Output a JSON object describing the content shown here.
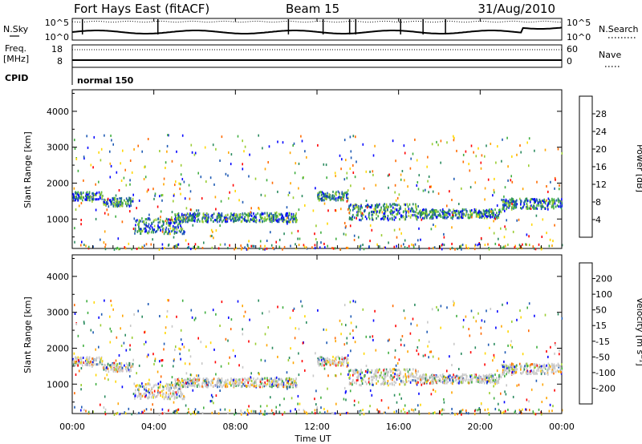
{
  "header": {
    "station": "Fort Hays East (fitACF)",
    "beam": "Beam 15",
    "date": "31/Aug/2010"
  },
  "nsky_panel": {
    "left_label": "N.Sky",
    "right_label": "N.Search",
    "left_ticks": [
      "10^5",
      "10^0"
    ],
    "right_ticks": [
      "10^5",
      "10^0"
    ]
  },
  "freq_panel": {
    "left_label_top": "Freq.",
    "left_label_unit": "[MHz]",
    "right_label": "Nave",
    "left_ticks": [
      "18",
      "8"
    ],
    "right_ticks": [
      "60",
      "0"
    ]
  },
  "cpid": {
    "label": "CPID",
    "mode": "normal 150"
  },
  "power_colorbar": {
    "title": "Power [dB]",
    "ticks": [
      "28",
      "24",
      "20",
      "16",
      "12",
      "8",
      "4"
    ],
    "colors": [
      "#0000ff",
      "#1e5ab4",
      "#2a8a5e",
      "#3fae3f",
      "#9acd32",
      "#ffd700",
      "#ffa500",
      "#ff6a00",
      "#ff0000"
    ]
  },
  "velocity_colorbar": {
    "title": "Velocity [m s⁻¹]",
    "ticks": [
      "200",
      "100",
      "50",
      "15",
      "-15",
      "-50",
      "-100",
      "-200"
    ],
    "colors": [
      "#0000ff",
      "#1e5ab4",
      "#2a8a5e",
      "#3fae3f",
      "#9acd32",
      "#c8c8c8",
      "#ffd700",
      "#ffa500",
      "#ff6a00",
      "#ff0000"
    ]
  },
  "chart_data": {
    "type": "heatmap",
    "xlabel": "Time UT",
    "ylabel": "Slant Range [km]",
    "x_ticks": [
      "00:00",
      "04:00",
      "08:00",
      "12:00",
      "16:00",
      "20:00",
      "00:00"
    ],
    "x_hours": [
      0,
      4,
      8,
      12,
      16,
      20,
      24
    ],
    "xlim": [
      0,
      24
    ],
    "ylim": [
      180,
      4600
    ],
    "y_ticks": [
      1000,
      2000,
      3000,
      4000
    ],
    "y_tick_labels": [
      "1000",
      "2000",
      "3000",
      "4000"
    ],
    "echo_bands": [
      {
        "t0": 0.0,
        "t1": 1.5,
        "r0": 1550,
        "r1": 1780
      },
      {
        "t0": 1.5,
        "t1": 3.0,
        "r0": 1380,
        "r1": 1620
      },
      {
        "t0": 3.0,
        "t1": 5.5,
        "r0": 620,
        "r1": 1050
      },
      {
        "t0": 5.0,
        "t1": 11.0,
        "r0": 950,
        "r1": 1200
      },
      {
        "t0": 12.0,
        "t1": 13.5,
        "r0": 1550,
        "r1": 1800
      },
      {
        "t0": 13.5,
        "t1": 17.0,
        "r0": 1000,
        "r1": 1450
      },
      {
        "t0": 17.0,
        "t1": 21.0,
        "r0": 1050,
        "r1": 1300
      },
      {
        "t0": 21.0,
        "t1": 24.0,
        "r0": 1300,
        "r1": 1600
      }
    ]
  }
}
